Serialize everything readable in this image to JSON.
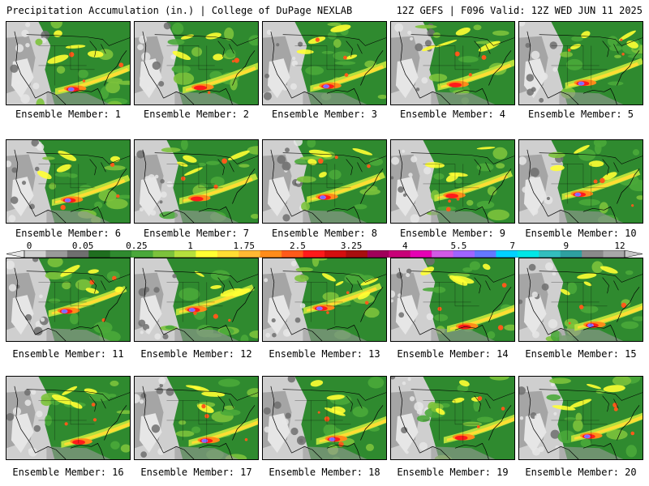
{
  "header": {
    "left": "Precipitation Accumulation (in.) | College of DuPage NEXLAB",
    "right": "12Z GEFS | F096 Valid: 12Z WED JUN 11 2025"
  },
  "panels": [
    {
      "caption": "Ensemble Member: 1"
    },
    {
      "caption": "Ensemble Member: 2"
    },
    {
      "caption": "Ensemble Member: 3"
    },
    {
      "caption": "Ensemble Member: 4"
    },
    {
      "caption": "Ensemble Member: 5"
    },
    {
      "caption": "Ensemble Member: 6"
    },
    {
      "caption": "Ensemble Member: 7"
    },
    {
      "caption": "Ensemble Member: 8"
    },
    {
      "caption": "Ensemble Member: 9"
    },
    {
      "caption": "Ensemble Member: 10"
    },
    {
      "caption": "Ensemble Member: 11"
    },
    {
      "caption": "Ensemble Member: 12"
    },
    {
      "caption": "Ensemble Member: 13"
    },
    {
      "caption": "Ensemble Member: 14"
    },
    {
      "caption": "Ensemble Member: 15"
    },
    {
      "caption": "Ensemble Member: 16"
    },
    {
      "caption": "Ensemble Member: 17"
    },
    {
      "caption": "Ensemble Member: 18"
    },
    {
      "caption": "Ensemble Member: 19"
    },
    {
      "caption": "Ensemble Member: 20"
    }
  ],
  "colorbar": {
    "labels": [
      "0",
      "0.05",
      "0.25",
      "1",
      "1.75",
      "2.5",
      "3.25",
      "4",
      "5.5",
      "7",
      "9",
      "12"
    ],
    "colors": [
      "#e6e6e6",
      "#cfcfcf",
      "#9a9a9a",
      "#6f6f6f",
      "#1f6e1f",
      "#2f8a2f",
      "#4aa83a",
      "#7cc23c",
      "#b6e03c",
      "#ffff33",
      "#ffdd33",
      "#ffb833",
      "#ff8c1a",
      "#ff5a1a",
      "#ff1a1a",
      "#d40f0f",
      "#a80f0f",
      "#a0005a",
      "#c80078",
      "#e600b4",
      "#d25ae6",
      "#a064ff",
      "#6478ff",
      "#00d2ff",
      "#00e6e6",
      "#33bebe",
      "#2ea0a0",
      "#8a8a8a",
      "#a8a8a8",
      "#c8c8c8"
    ]
  }
}
